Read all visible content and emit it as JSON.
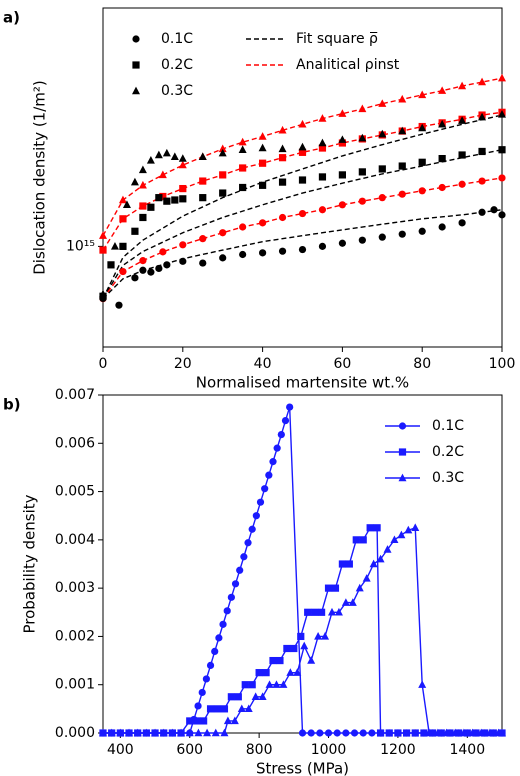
{
  "chart_data": [
    {
      "type": "scatter",
      "label": "a)",
      "ylabel": "Dislocation density (1/m²)",
      "xlabel": "Normalised martensite wt.%",
      "xlim": [
        0,
        100
      ],
      "xticks": [
        0,
        20,
        40,
        60,
        80,
        100
      ],
      "ylim": [
        530000000000000.0,
        4500000000000000.0
      ],
      "ylog": true,
      "yticks": [
        {
          "value": 1000000000000000.0,
          "label": "10¹⁵"
        }
      ],
      "legend": "upper left",
      "series": [
        {
          "name": "0.1C",
          "color": "#000000",
          "marker": "circle",
          "x": [
            0,
            4,
            8,
            10,
            12,
            14,
            16,
            20,
            25,
            30,
            35,
            40,
            45,
            50,
            55,
            60,
            65,
            70,
            75,
            80,
            85,
            90,
            95,
            98,
            100
          ],
          "values": [
            720000000000000.0,
            690000000000000.0,
            820000000000000.0,
            860000000000000.0,
            850000000000000.0,
            870000000000000.0,
            890000000000000.0,
            910000000000000.0,
            900000000000000.0,
            930000000000000.0,
            950000000000000.0,
            960000000000000.0,
            970000000000000.0,
            980000000000000.0,
            1000000000000000.0,
            1020000000000000.0,
            1040000000000000.0,
            1060000000000000.0,
            1080000000000000.0,
            1100000000000000.0,
            1130000000000000.0,
            1160000000000000.0,
            1240000000000000.0,
            1260000000000000.0,
            1220000000000000.0
          ]
        },
        {
          "name": "0.2C",
          "color": "#000000",
          "marker": "square",
          "x": [
            0,
            2,
            5,
            8,
            10,
            12,
            14,
            16,
            18,
            20,
            25,
            30,
            35,
            40,
            45,
            50,
            55,
            60,
            65,
            70,
            75,
            80,
            85,
            90,
            95,
            100
          ],
          "values": [
            730000000000000.0,
            890000000000000.0,
            1000000000000000.0,
            1100000000000000.0,
            1200000000000000.0,
            1280000000000000.0,
            1360000000000000.0,
            1330000000000000.0,
            1340000000000000.0,
            1350000000000000.0,
            1360000000000000.0,
            1400000000000000.0,
            1450000000000000.0,
            1470000000000000.0,
            1500000000000000.0,
            1520000000000000.0,
            1550000000000000.0,
            1570000000000000.0,
            1600000000000000.0,
            1630000000000000.0,
            1660000000000000.0,
            1700000000000000.0,
            1740000000000000.0,
            1780000000000000.0,
            1820000000000000.0,
            1840000000000000.0
          ]
        },
        {
          "name": "0.3C",
          "color": "#000000",
          "marker": "triangle",
          "x": [
            0,
            3,
            6,
            8,
            10,
            12,
            14,
            16,
            18,
            20,
            25,
            30,
            35,
            40,
            45,
            50,
            55,
            60,
            65,
            70,
            75,
            80,
            85,
            90,
            95,
            100
          ],
          "values": [
            740000000000000.0,
            1000000000000000.0,
            1300000000000000.0,
            1500000000000000.0,
            1620000000000000.0,
            1720000000000000.0,
            1780000000000000.0,
            1800000000000000.0,
            1760000000000000.0,
            1740000000000000.0,
            1760000000000000.0,
            1800000000000000.0,
            1840000000000000.0,
            1860000000000000.0,
            1850000000000000.0,
            1870000000000000.0,
            1920000000000000.0,
            1960000000000000.0,
            1980000000000000.0,
            2030000000000000.0,
            2070000000000000.0,
            2110000000000000.0,
            2160000000000000.0,
            2210000000000000.0,
            2260000000000000.0,
            2300000000000000.0
          ]
        }
      ],
      "fits": {
        "name": "Fit square ρ̅",
        "color": "#000000",
        "x": [
          0,
          5,
          10,
          20,
          30,
          40,
          50,
          60,
          70,
          80,
          90,
          100
        ],
        "curves": [
          [
            719000000000000.0,
            815000000000000.0,
            859000000000000.0,
            925000000000000.0,
            977000000000000.0,
            1030000000000000.0,
            1070000000000000.0,
            1110000000000000.0,
            1150000000000000.0,
            1190000000000000.0,
            1220000000000000.0,
            1260000000000000.0
          ],
          [
            719000000000000.0,
            887000000000000.0,
            968000000000000.0,
            1090000000000000.0,
            1200000000000000.0,
            1300000000000000.0,
            1400000000000000.0,
            1490000000000000.0,
            1580000000000000.0,
            1660000000000000.0,
            1750000000000000.0,
            1840000000000000.0
          ],
          [
            719000000000000.0,
            933000000000000.0,
            1040000000000000.0,
            1210000000000000.0,
            1360000000000000.0,
            1500000000000000.0,
            1630000000000000.0,
            1770000000000000.0,
            1900000000000000.0,
            2030000000000000.0,
            2160000000000000.0,
            2290000000000000.0
          ]
        ]
      },
      "analytical": {
        "name": "Analitical ρinst",
        "color": "#ff0000",
        "x": [
          0,
          5,
          10,
          15,
          20,
          25,
          30,
          35,
          40,
          45,
          50,
          55,
          60,
          65,
          70,
          75,
          80,
          85,
          90,
          95,
          100
        ],
        "curves": [
          [
            719000000000000.0,
            853000000000000.0,
            914000000000000.0,
            966000000000000.0,
            1010000000000000.0,
            1050000000000000.0,
            1090000000000000.0,
            1130000000000000.0,
            1160000000000000.0,
            1200000000000000.0,
            1230000000000000.0,
            1260000000000000.0,
            1300000000000000.0,
            1330000000000000.0,
            1360000000000000.0,
            1390000000000000.0,
            1420000000000000.0,
            1450000000000000.0,
            1480000000000000.0,
            1510000000000000.0,
            1540000000000000.0
          ],
          [
            977000000000000.0,
            1190000000000000.0,
            1290000000000000.0,
            1370000000000000.0,
            1440000000000000.0,
            1510000000000000.0,
            1570000000000000.0,
            1640000000000000.0,
            1690000000000000.0,
            1750000000000000.0,
            1810000000000000.0,
            1860000000000000.0,
            1920000000000000.0,
            1970000000000000.0,
            2020000000000000.0,
            2070000000000000.0,
            2130000000000000.0,
            2180000000000000.0,
            2230000000000000.0,
            2290000000000000.0,
            2330000000000000.0
          ],
          [
            1070000000000000.0,
            1340000000000000.0,
            1470000000000000.0,
            1570000000000000.0,
            1670000000000000.0,
            1760000000000000.0,
            1850000000000000.0,
            1930000000000000.0,
            2000000000000000.0,
            2080000000000000.0,
            2160000000000000.0,
            2240000000000000.0,
            2310000000000000.0,
            2380000000000000.0,
            2460000000000000.0,
            2530000000000000.0,
            2600000000000000.0,
            2670000000000000.0,
            2750000000000000.0,
            2820000000000000.0,
            2890000000000000.0
          ]
        ]
      }
    },
    {
      "type": "line",
      "label": "b)",
      "ylabel": "Probability density",
      "xlabel": "Stress (MPa)",
      "xlim": [
        350,
        1500
      ],
      "xticks": [
        400,
        600,
        800,
        1000,
        1200,
        1400
      ],
      "ylim": [
        0,
        0.007
      ],
      "yticks": [
        {
          "value": 0,
          "label": "0.000"
        },
        0.001,
        0.002,
        0.003,
        0.004,
        0.005,
        0.006,
        0.007
      ],
      "legend": "upper right",
      "series": [
        {
          "name": "0.1C",
          "color": "#1a1aff",
          "marker": "circle",
          "x": [
            350,
            375,
            400,
            425,
            450,
            475,
            500,
            525,
            550,
            575,
            600,
            612,
            624,
            636,
            648,
            660,
            672,
            684,
            696,
            708,
            720,
            732,
            744,
            756,
            768,
            780,
            792,
            804,
            816,
            828,
            840,
            852,
            864,
            876,
            888,
            925,
            950,
            975,
            1000,
            1025,
            1050,
            1075,
            1100,
            1125,
            1150,
            1175,
            1200,
            1225,
            1250,
            1275,
            1300,
            1325,
            1350,
            1375,
            1400,
            1425,
            1450,
            1475,
            1500
          ],
          "values": [
            0,
            0,
            0,
            0,
            0,
            0,
            0,
            0,
            0,
            0,
            0,
            0.00028,
            0.00056,
            0.00084,
            0.00112,
            0.0014,
            0.00169,
            0.00197,
            0.00225,
            0.00253,
            0.00281,
            0.00309,
            0.00337,
            0.00365,
            0.00394,
            0.00422,
            0.0045,
            0.00478,
            0.00506,
            0.00534,
            0.00562,
            0.0059,
            0.00618,
            0.00647,
            0.00675,
            0,
            0,
            0,
            0,
            0,
            0,
            0,
            0,
            0,
            0,
            0,
            0,
            0,
            0,
            0,
            0,
            0,
            0,
            0,
            0,
            0,
            0,
            0,
            0
          ]
        },
        {
          "name": "0.2C",
          "color": "#1a1aff",
          "marker": "square",
          "x": [
            350,
            375,
            400,
            425,
            450,
            475,
            500,
            525,
            550,
            575,
            600,
            620,
            640,
            660,
            680,
            700,
            720,
            740,
            760,
            780,
            800,
            820,
            840,
            860,
            880,
            900,
            920,
            940,
            960,
            980,
            1000,
            1020,
            1040,
            1060,
            1080,
            1100,
            1120,
            1140,
            1150,
            1175,
            1200,
            1225,
            1250,
            1275,
            1300,
            1325,
            1350,
            1375,
            1400,
            1425,
            1450,
            1475,
            1500
          ],
          "values": [
            0,
            0,
            0,
            0,
            0,
            0,
            0,
            0,
            0,
            0,
            0.00025,
            0.00025,
            0.00025,
            0.0005,
            0.0005,
            0.0005,
            0.00075,
            0.00075,
            0.001,
            0.001,
            0.00125,
            0.00125,
            0.0015,
            0.0015,
            0.00175,
            0.00175,
            0.002,
            0.0025,
            0.0025,
            0.0025,
            0.003,
            0.003,
            0.0035,
            0.0035,
            0.004,
            0.004,
            0.00425,
            0.00425,
            0,
            0,
            0,
            0,
            0,
            0,
            0,
            0,
            0,
            0,
            0,
            0,
            0,
            0,
            0
          ]
        },
        {
          "name": "0.3C",
          "color": "#1a1aff",
          "marker": "triangle",
          "x": [
            350,
            375,
            400,
            425,
            450,
            475,
            500,
            525,
            550,
            575,
            600,
            625,
            650,
            675,
            700,
            710,
            730,
            750,
            770,
            790,
            810,
            830,
            850,
            870,
            890,
            910,
            930,
            950,
            970,
            990,
            1010,
            1030,
            1050,
            1070,
            1090,
            1110,
            1130,
            1150,
            1170,
            1190,
            1210,
            1230,
            1250,
            1270,
            1290,
            1315,
            1340,
            1365,
            1390,
            1415,
            1440,
            1465,
            1490,
            1500
          ],
          "values": [
            0,
            0,
            0,
            0,
            0,
            0,
            0,
            0,
            0,
            0,
            0,
            0,
            0,
            0,
            0,
            0.00025,
            0.00025,
            0.0005,
            0.0005,
            0.00075,
            0.00075,
            0.001,
            0.001,
            0.001,
            0.00125,
            0.00125,
            0.0018,
            0.0015,
            0.002,
            0.002,
            0.0025,
            0.0025,
            0.0027,
            0.0027,
            0.003,
            0.0032,
            0.0035,
            0.0036,
            0.0038,
            0.004,
            0.0041,
            0.0042,
            0.00425,
            0.001,
            0,
            0,
            0,
            0,
            0,
            0,
            0,
            0,
            0,
            0
          ]
        }
      ]
    }
  ]
}
